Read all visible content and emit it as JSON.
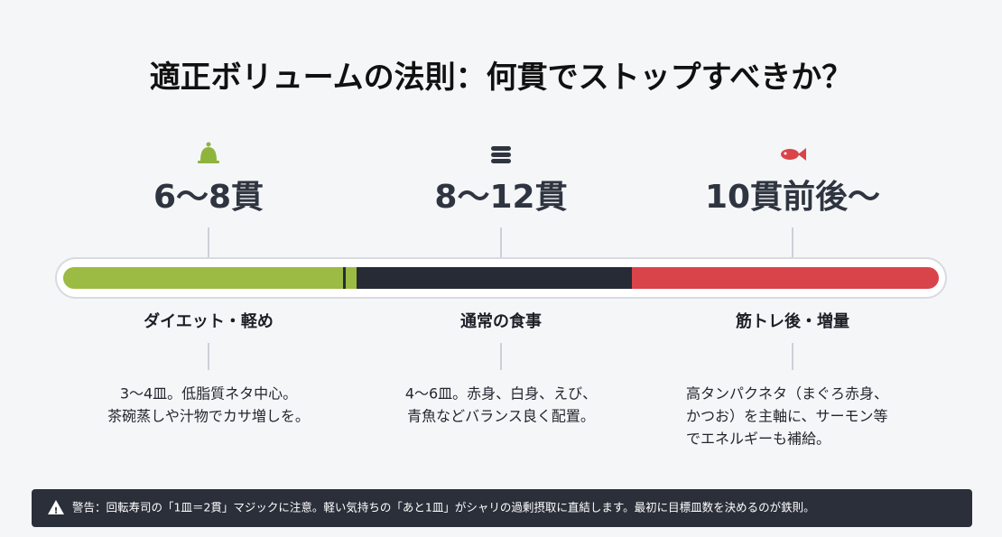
{
  "title": "適正ボリュームの法則：何貫でストップすべきか？",
  "tiers": [
    {
      "range": "6〜8貫",
      "label": "ダイエット・軽め",
      "description": [
        "3〜4皿。低脂質ネタ中心。",
        "茶碗蒸しや汁物でカサ増しを。"
      ]
    },
    {
      "range": "8〜12貫",
      "label": "通常の食事",
      "description": [
        "4〜6皿。赤身、白身、えび、",
        "青魚などバランス良く配置。"
      ]
    },
    {
      "range": "10貫前後〜",
      "label": "筋トレ後・増量",
      "description": [
        "高タンパクネタ（まぐろ赤身、",
        "かつお）を主軸に、サーモン等",
        "でエネルギーも補給。"
      ]
    }
  ],
  "warning": "警告：回転寿司の「1皿＝2貫」マジックに注意。軽い気持ちの「あと1皿」がシャリの過剰摂取に直結します。最初に目標皿数を決めるのが鉄則。"
}
